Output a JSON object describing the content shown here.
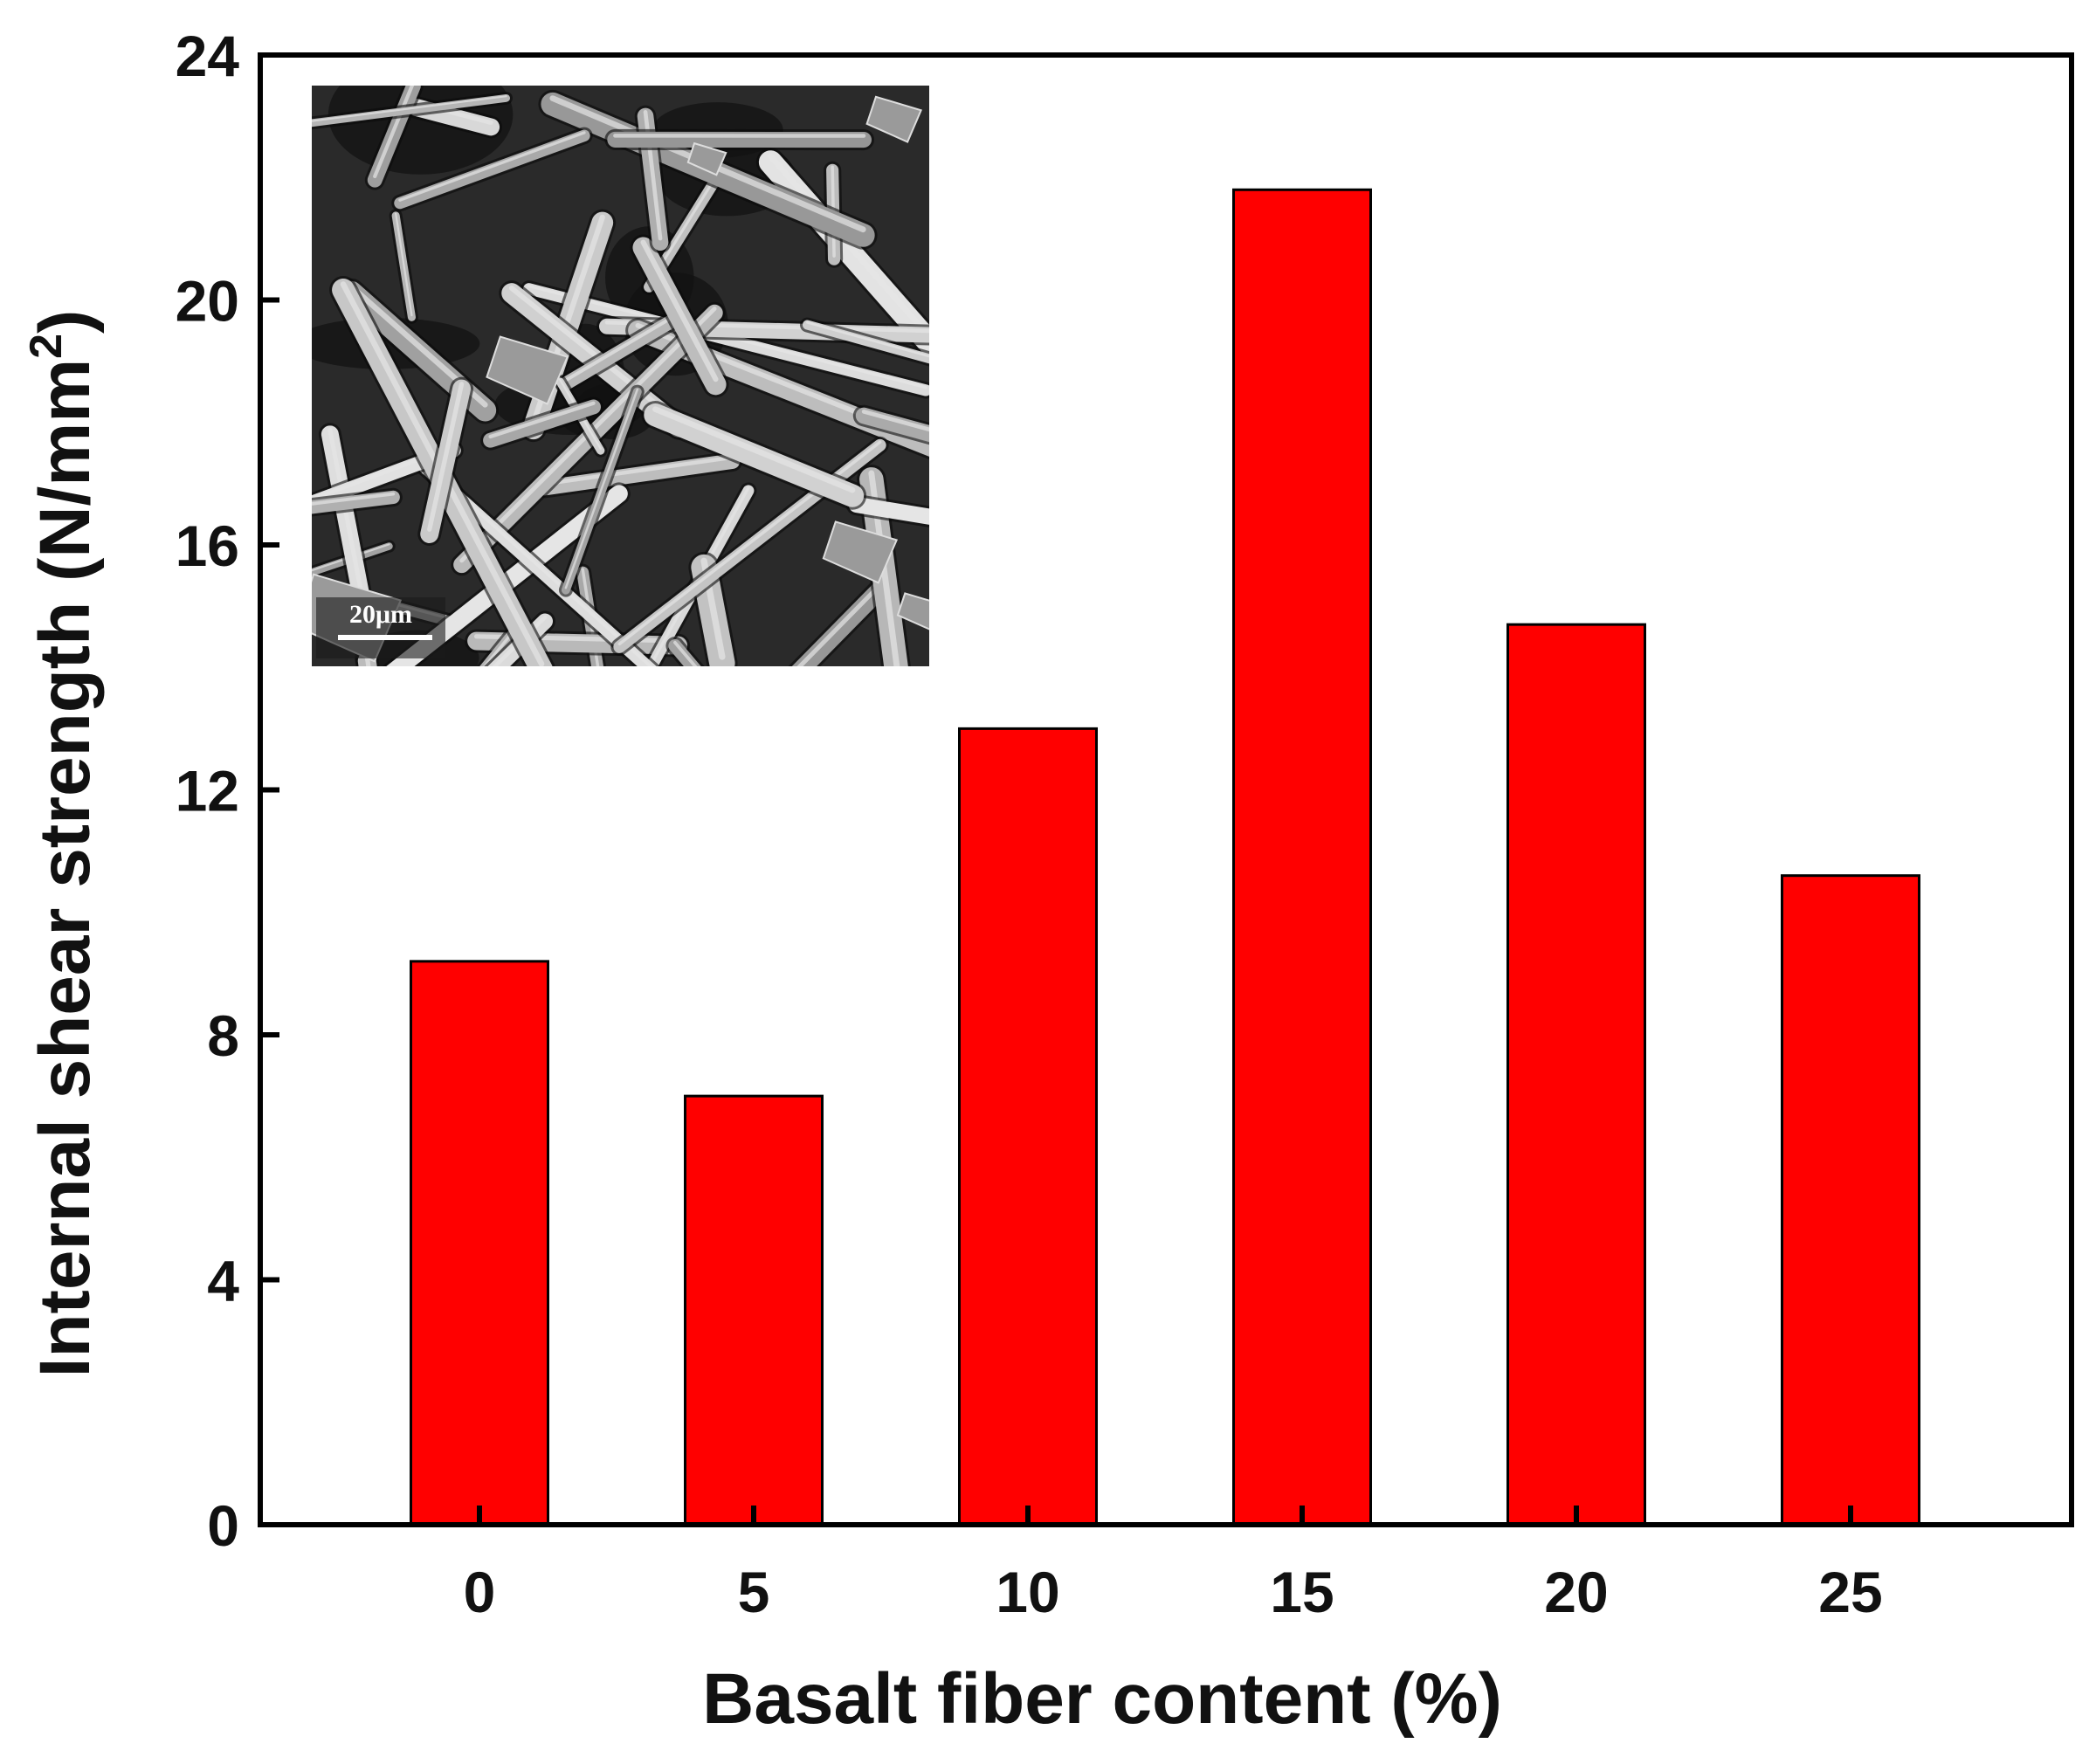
{
  "chart_data": {
    "type": "bar",
    "title": "",
    "xlabel": "Basalt fiber content (%)",
    "ylabel": {
      "main": "Internal shear strength (N/mm",
      "superscript": "2",
      "close": ")"
    },
    "categories": [
      "0",
      "5",
      "10",
      "15",
      "20",
      "25"
    ],
    "values": [
      9.2,
      7.0,
      13.0,
      21.8,
      14.7,
      10.6
    ],
    "ylim": [
      0,
      24
    ],
    "yticks": [
      "0",
      "4",
      "8",
      "12",
      "16",
      "20",
      "24"
    ],
    "bar_color": "#ff0000",
    "bar_edge_color": "#000000",
    "grid": false,
    "legend": "none"
  },
  "inset": {
    "type": "SEM micrograph of basalt fibers",
    "scale_bar_label": "20μm"
  }
}
